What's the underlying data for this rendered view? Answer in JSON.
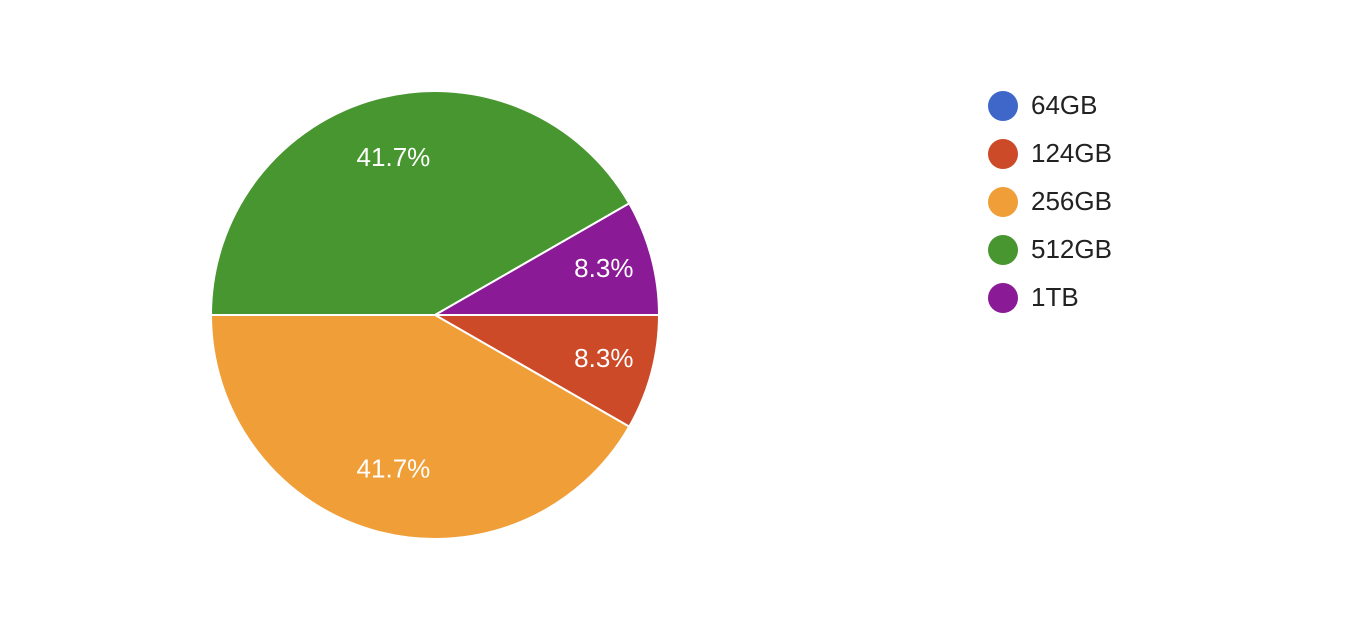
{
  "chart_data": {
    "type": "pie",
    "categories": [
      "64GB",
      "124GB",
      "256GB",
      "512GB",
      "1TB"
    ],
    "values": [
      0,
      8.3,
      41.7,
      41.7,
      8.3
    ],
    "value_labels": [
      null,
      "8.3%",
      "41.7%",
      "41.7%",
      "8.3%"
    ],
    "colors": [
      "#3f67c9",
      "#cc4a28",
      "#f09f38",
      "#47962f",
      "#8b1a96"
    ],
    "legend": "right"
  }
}
